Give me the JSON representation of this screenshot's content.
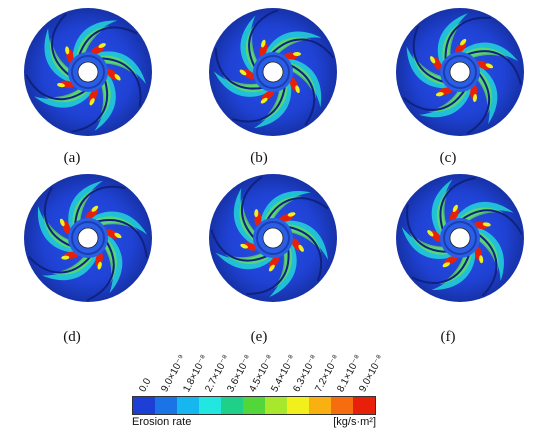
{
  "figure": {
    "panels": [
      {
        "caption": "(a)"
      },
      {
        "caption": "(b)"
      },
      {
        "caption": "(c)"
      },
      {
        "caption": "(d)"
      },
      {
        "caption": "(e)"
      },
      {
        "caption": "(f)"
      }
    ]
  },
  "legend": {
    "title": "Erosion rate",
    "unit": "[kg/s·m²]",
    "ticks": [
      "0.0",
      "9.0×10⁻⁹",
      "1.8×10⁻⁸",
      "2.7×10⁻⁸",
      "3.6×10⁻⁸",
      "4.5×10⁻⁸",
      "5.4×10⁻⁸",
      "6.3×10⁻⁸",
      "7.2×10⁻⁸",
      "8.1×10⁻⁸",
      "9.0×10⁻⁸"
    ],
    "colors": [
      "#1e3fd6",
      "#1a74e6",
      "#16b6ef",
      "#22e6e0",
      "#1fd089",
      "#52d63a",
      "#a8e82c",
      "#f1ef1c",
      "#f9b112",
      "#f56d0e",
      "#e8200a"
    ]
  }
}
